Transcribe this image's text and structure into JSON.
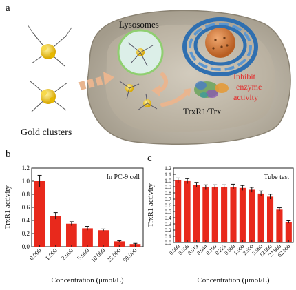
{
  "figure": {
    "panel_a": {
      "letter": "a",
      "labels": {
        "gold_clusters": "Gold clusters",
        "lysosomes": "Lysosomes",
        "trx": "TrxR1/Trx",
        "inhibit_line1": "Inhibit",
        "inhibit_line2": "enzyme",
        "inhibit_line3": "activity"
      },
      "colors": {
        "cell_body": "#b9b1a2",
        "lysosome": "#d6efe6",
        "nucleus_ring": "#2f6fb0",
        "nucleus_core": "#d98040",
        "inhibit_text": "#e32a2a",
        "arrow": "#e9b58f"
      }
    },
    "panel_b": {
      "letter": "b"
    },
    "panel_c": {
      "letter": "c"
    }
  },
  "chart_data": [
    {
      "type": "bar",
      "annotation": "In PC-9 cell",
      "xlabel": "Concentration (μmol/L)",
      "ylabel": "TrxR1 activity",
      "categories": [
        "0.000",
        "1.000",
        "2.000",
        "5.000",
        "10.000",
        "25.000",
        "50.000"
      ],
      "values": [
        1.0,
        0.47,
        0.35,
        0.28,
        0.25,
        0.08,
        0.04
      ],
      "errors": [
        0.09,
        0.05,
        0.03,
        0.03,
        0.02,
        0.01,
        0.01
      ],
      "ylim": [
        0,
        1.2
      ],
      "yticks": [
        "0.0",
        "0.2",
        "0.4",
        "0.6",
        "0.8",
        "1.0",
        "1.2"
      ],
      "color": "#e8291c"
    },
    {
      "type": "bar",
      "annotation": "Tube test",
      "xlabel": "Concentration (μmol/L)",
      "ylabel": "TrxR1 activity",
      "categories": [
        "0.000",
        "0.008",
        "0.019",
        "0.044",
        "0.100",
        "0.223",
        "0.500",
        "1.000",
        "2.500",
        "5.580",
        "12.500",
        "27.900",
        "62.500"
      ],
      "values": [
        1.0,
        0.99,
        0.93,
        0.89,
        0.89,
        0.89,
        0.9,
        0.88,
        0.85,
        0.79,
        0.74,
        0.53,
        0.33
      ],
      "errors": [
        0.04,
        0.04,
        0.04,
        0.04,
        0.04,
        0.04,
        0.04,
        0.04,
        0.04,
        0.04,
        0.04,
        0.03,
        0.02
      ],
      "ylim": [
        0,
        1.2
      ],
      "yticks": [
        "0.0",
        "0.1",
        "0.2",
        "0.3",
        "0.4",
        "0.5",
        "0.6",
        "0.7",
        "0.8",
        "0.9",
        "1.0",
        "1.1",
        "1.2"
      ],
      "color": "#e8291c"
    }
  ]
}
